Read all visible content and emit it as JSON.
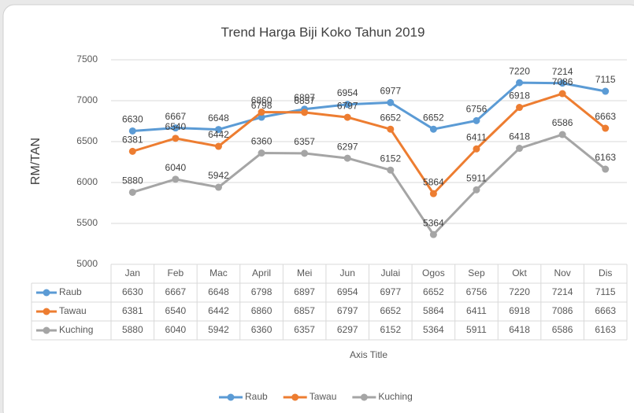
{
  "chart_data": {
    "type": "line",
    "title": "Trend Harga Biji Koko Tahun 2019",
    "ylabel": "RM/TAN",
    "xlabel": "Axis Title",
    "categories": [
      "Jan",
      "Feb",
      "Mac",
      "April",
      "Mei",
      "Jun",
      "Julai",
      "Ogos",
      "Sep",
      "Okt",
      "Nov",
      "Dis"
    ],
    "series": [
      {
        "name": "Raub",
        "color": "#5b9bd5",
        "values": [
          6630,
          6667,
          6648,
          6798,
          6897,
          6954,
          6977,
          6652,
          6756,
          7220,
          7214,
          7115
        ]
      },
      {
        "name": "Tawau",
        "color": "#ed7d31",
        "values": [
          6381,
          6540,
          6442,
          6860,
          6857,
          6797,
          6652,
          5864,
          6411,
          6918,
          7086,
          6663
        ]
      },
      {
        "name": "Kuching",
        "color": "#a5a5a5",
        "values": [
          5880,
          6040,
          5942,
          6360,
          6357,
          6297,
          6152,
          5364,
          5911,
          6418,
          6586,
          6163
        ]
      }
    ],
    "ylim": [
      5000,
      7500
    ],
    "yticks": [
      5000,
      5500,
      6000,
      6500,
      7000,
      7500
    ],
    "grid": true,
    "legend": "bottom",
    "data_table": true
  }
}
